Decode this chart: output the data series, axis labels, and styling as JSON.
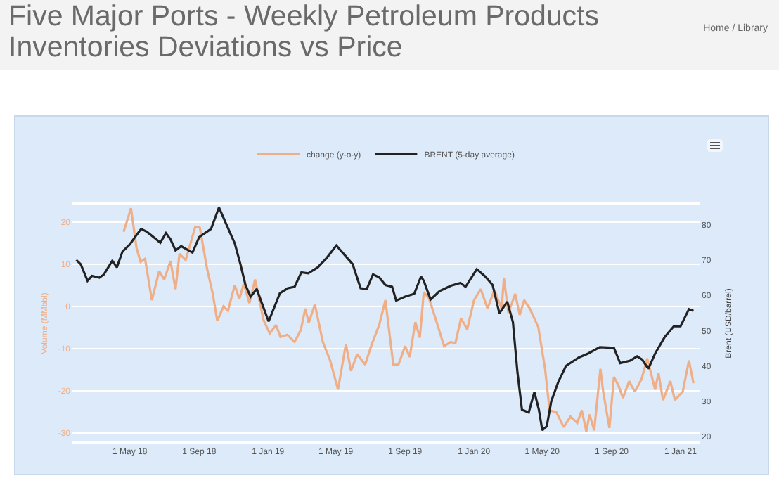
{
  "chart_data": {
    "type": "line",
    "title": "Five Major Ports - Weekly Petroleum Products Inventories Deviations vs Price",
    "annotations": [
      "Home / Library"
    ],
    "ylabel": "Volume (MMbbl)",
    "y2label": "Brent (USD/barrel)",
    "legend": "top",
    "grid": "y",
    "marker": "none",
    "line_style": "solid",
    "xlim": [
      "2018-01-18",
      "2021-02-05"
    ],
    "xticks": [
      {
        "value": "2018-05-01",
        "label": "1 May 18"
      },
      {
        "value": "2018-09-01",
        "label": "1 Sep 18"
      },
      {
        "value": "2019-01-01",
        "label": "1 Jan 19"
      },
      {
        "value": "2019-05-01",
        "label": "1 May 19"
      },
      {
        "value": "2019-09-01",
        "label": "1 Sep 19"
      },
      {
        "value": "2020-01-01",
        "label": "1 Jan 20"
      },
      {
        "value": "2020-05-01",
        "label": "1 May 20"
      },
      {
        "value": "2020-09-01",
        "label": "1 Sep 20"
      },
      {
        "value": "2021-01-01",
        "label": "1 Jan 21"
      }
    ],
    "ylim": [
      -32,
      24
    ],
    "yticks": [
      -30,
      -20,
      -10,
      0,
      10,
      20
    ],
    "y2lim": [
      18.6,
      85.5
    ],
    "y2ticks": [
      20,
      30,
      40,
      50,
      60,
      70,
      80
    ],
    "series": [
      {
        "name": "change (y-o-y)",
        "color": "#f0ae86",
        "x": [
          "2018-04-20",
          "2018-05-03",
          "2018-05-13",
          "2018-05-20",
          "2018-05-28",
          "2018-06-09",
          "2018-06-22",
          "2018-07-01",
          "2018-07-12",
          "2018-07-21",
          "2018-07-28",
          "2018-08-08",
          "2018-08-25",
          "2018-09-02",
          "2018-09-15",
          "2018-09-25",
          "2018-10-03",
          "2018-10-14",
          "2018-10-22",
          "2018-11-03",
          "2018-11-11",
          "2018-11-19",
          "2018-11-29",
          "2018-12-09",
          "2018-12-24",
          "2019-01-04",
          "2019-01-15",
          "2019-01-23",
          "2019-02-04",
          "2019-02-17",
          "2019-02-28",
          "2019-03-08",
          "2019-03-14",
          "2019-03-25",
          "2019-04-08",
          "2019-04-21",
          "2019-05-05",
          "2019-05-19",
          "2019-05-28",
          "2019-06-08",
          "2019-06-22",
          "2019-07-04",
          "2019-07-17",
          "2019-07-28",
          "2019-08-11",
          "2019-08-20",
          "2019-09-01",
          "2019-09-09",
          "2019-09-19",
          "2019-09-27",
          "2019-10-04",
          "2019-10-13",
          "2019-10-24",
          "2019-11-09",
          "2019-11-21",
          "2019-11-29",
          "2019-12-09",
          "2019-12-20",
          "2020-01-01",
          "2020-01-13",
          "2020-01-25",
          "2020-02-06",
          "2020-02-19",
          "2020-02-23",
          "2020-03-02",
          "2020-03-14",
          "2020-03-22",
          "2020-03-30",
          "2020-04-09",
          "2020-04-24",
          "2020-05-06",
          "2020-05-14",
          "2020-05-26",
          "2020-06-08",
          "2020-06-20",
          "2020-07-02",
          "2020-07-10",
          "2020-07-18",
          "2020-07-24",
          "2020-08-01",
          "2020-08-12",
          "2020-08-17",
          "2020-08-28",
          "2020-09-05",
          "2020-09-13",
          "2020-09-21",
          "2020-10-02",
          "2020-10-12",
          "2020-10-24",
          "2020-11-03",
          "2020-11-17",
          "2020-11-23",
          "2020-12-01",
          "2020-12-14",
          "2020-12-22",
          "2021-01-05",
          "2021-01-16",
          "2021-01-24"
        ],
        "values": [
          17.7,
          23.3,
          13.8,
          10.6,
          11.3,
          1.5,
          8.4,
          6.4,
          10.8,
          4.1,
          12.5,
          11,
          18.9,
          18.7,
          8.9,
          3,
          -3.4,
          0,
          -1,
          5.1,
          1.8,
          5.4,
          0.8,
          6.4,
          -3.2,
          -6.4,
          -4.4,
          -7.2,
          -6.7,
          -8.4,
          -5.6,
          -0.5,
          -3.9,
          0.5,
          -8.4,
          -12.8,
          -19.7,
          -8.9,
          -15.3,
          -11.3,
          -13.8,
          -8.9,
          -4.4,
          1.5,
          -13.8,
          -13.8,
          -9.4,
          -12,
          -3.7,
          -7.4,
          3.4,
          2,
          -2.5,
          -9.4,
          -8.4,
          -8.7,
          -2.8,
          -5.4,
          1.5,
          4.1,
          -0.5,
          3.9,
          -0.5,
          6.7,
          -1.5,
          3,
          -2,
          1.5,
          -0.5,
          -4.9,
          -14.8,
          -24.6,
          -25.1,
          -28.6,
          -26.1,
          -27.6,
          -24.6,
          -29.6,
          -25.6,
          -29.4,
          -14.8,
          -20.2,
          -28.8,
          -16.7,
          -18.7,
          -21.7,
          -17.7,
          -20.2,
          -17.2,
          -12.3,
          -19.7,
          -15.8,
          -22.2,
          -17.7,
          -22.2,
          -20.2,
          -12.8,
          -18.2
        ]
      },
      {
        "name": "BRENT (5-day average)",
        "color": "#222222",
        "axis": "y2",
        "x": [
          "2018-01-26",
          "2018-02-03",
          "2018-02-15",
          "2018-02-23",
          "2018-03-08",
          "2018-03-16",
          "2018-03-31",
          "2018-04-08",
          "2018-04-18",
          "2018-05-01",
          "2018-05-13",
          "2018-05-21",
          "2018-05-31",
          "2018-06-15",
          "2018-06-24",
          "2018-07-04",
          "2018-07-12",
          "2018-07-21",
          "2018-07-31",
          "2018-08-20",
          "2018-09-01",
          "2018-09-22",
          "2018-10-06",
          "2018-10-21",
          "2018-11-03",
          "2018-11-13",
          "2018-11-22",
          "2018-12-01",
          "2018-12-12",
          "2018-12-20",
          "2019-01-02",
          "2019-01-22",
          "2019-02-05",
          "2019-02-17",
          "2019-03-01",
          "2019-03-13",
          "2019-03-30",
          "2019-04-15",
          "2019-05-02",
          "2019-05-18",
          "2019-05-31",
          "2019-06-14",
          "2019-06-25",
          "2019-07-06",
          "2019-07-17",
          "2019-07-28",
          "2019-08-09",
          "2019-08-16",
          "2019-09-01",
          "2019-09-17",
          "2019-09-29",
          "2019-10-04",
          "2019-10-16",
          "2019-11-01",
          "2019-11-21",
          "2019-12-08",
          "2019-12-17",
          "2020-01-06",
          "2020-01-21",
          "2020-02-03",
          "2020-02-15",
          "2020-02-29",
          "2020-03-10",
          "2020-03-18",
          "2020-03-26",
          "2020-04-07",
          "2020-04-17",
          "2020-04-25",
          "2020-05-01",
          "2020-05-09",
          "2020-05-17",
          "2020-05-29",
          "2020-06-12",
          "2020-07-05",
          "2020-07-21",
          "2020-08-11",
          "2020-09-05",
          "2020-09-16",
          "2020-10-04",
          "2020-10-16",
          "2020-10-25",
          "2020-11-05",
          "2020-11-17",
          "2020-12-04",
          "2020-12-20",
          "2021-01-01",
          "2021-01-16",
          "2021-01-24"
        ],
        "values": [
          70,
          68.8,
          64.1,
          65.5,
          65,
          65.9,
          69.8,
          67.9,
          72.4,
          74.4,
          77.1,
          78.8,
          78,
          76.1,
          74.9,
          77.6,
          75.9,
          72.7,
          73.9,
          72.1,
          76.5,
          78.8,
          84.9,
          79.4,
          74.7,
          68.8,
          62.9,
          59.6,
          61.8,
          58.2,
          52.6,
          60.6,
          62,
          62.4,
          66.5,
          66.2,
          67.9,
          70.6,
          74.1,
          71.2,
          68.8,
          62,
          61.8,
          65.9,
          65.1,
          62.9,
          62.4,
          58.5,
          59.6,
          60.4,
          65.3,
          64.1,
          58.8,
          61.2,
          62.7,
          63.5,
          62.4,
          67.4,
          65.3,
          62.9,
          54.9,
          58.2,
          52.4,
          38.2,
          27.6,
          26.8,
          32.6,
          27.6,
          21.8,
          22.9,
          30,
          35.3,
          40,
          42.4,
          43.5,
          45.3,
          45.1,
          40.8,
          41.5,
          42.7,
          41.8,
          39.2,
          43.5,
          48.2,
          51.2,
          51.2,
          56.1,
          55.6
        ]
      }
    ]
  }
}
